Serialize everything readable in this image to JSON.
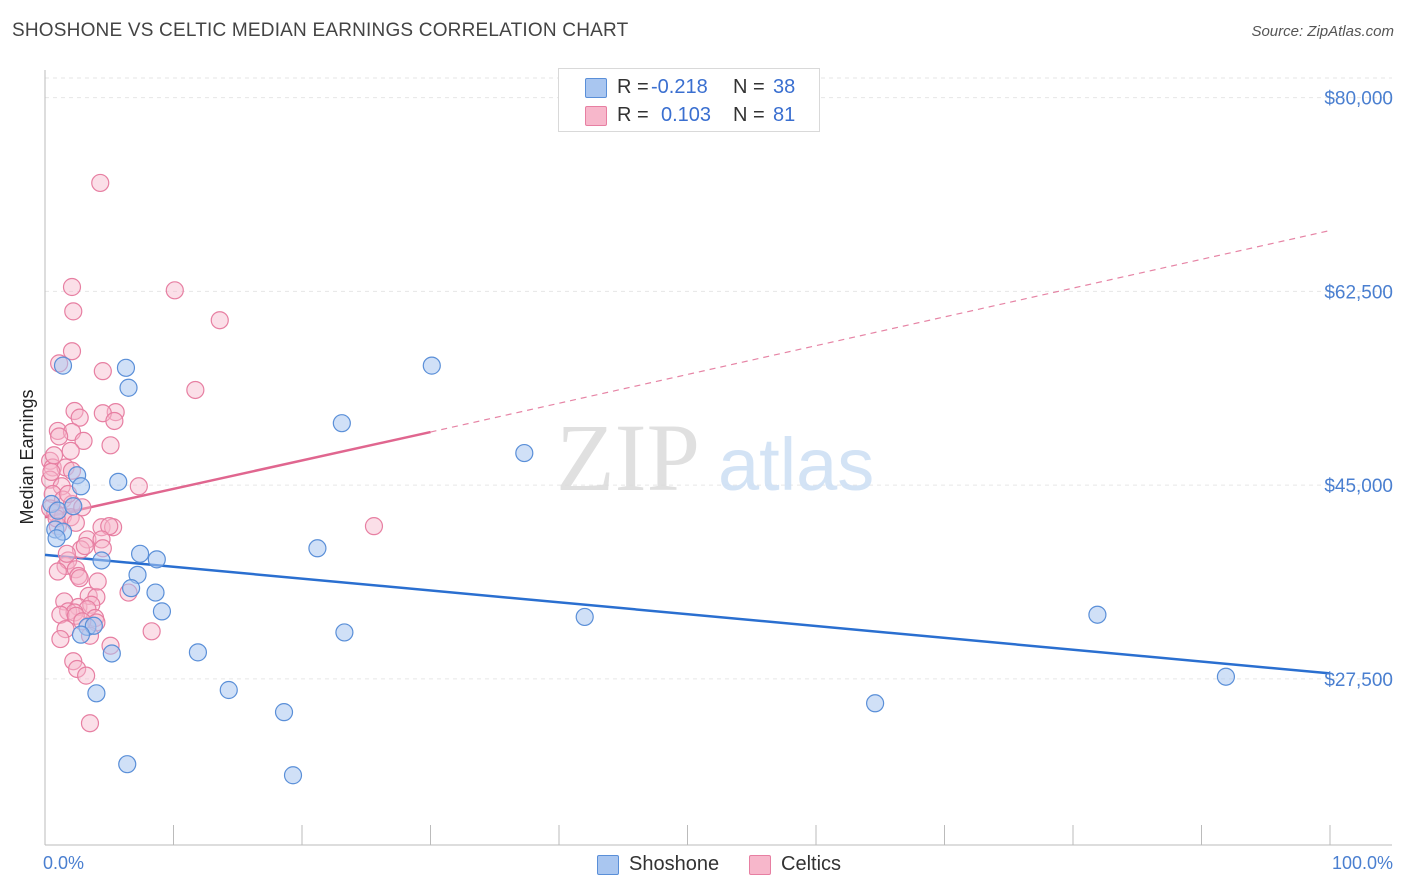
{
  "title": "SHOSHONE VS CELTIC MEDIAN EARNINGS CORRELATION CHART",
  "source": "Source: ZipAtlas.com",
  "watermark": {
    "zip": "ZIP",
    "atlas": "atlas"
  },
  "colors": {
    "shoshone_fill": "#a9c6f0",
    "shoshone_stroke": "#5a8fd8",
    "shoshone_line": "#2a6fd0",
    "celtics_fill": "#f7b7cb",
    "celtics_stroke": "#e77fa2",
    "celtics_line": "#e0668f",
    "axis_label": "#4a7fd0",
    "grid": "#e6e6e6"
  },
  "legend": {
    "rows": [
      {
        "series": "Shoshone",
        "r_label": "R =",
        "r_value": "-0.218",
        "n_label": "N =",
        "n_value": "38"
      },
      {
        "series": "Celtics",
        "r_label": "R =",
        "r_value": "0.103",
        "n_label": "N =",
        "n_value": "81"
      }
    ]
  },
  "bottom_legend": [
    "Shoshone",
    "Celtics"
  ],
  "chart_data": {
    "type": "scatter",
    "title": "SHOSHONE VS CELTIC MEDIAN EARNINGS CORRELATION CHART",
    "xlabel": "",
    "ylabel": "Median Earnings",
    "xlim": [
      0,
      100
    ],
    "ylim": [
      12500,
      82500
    ],
    "x_tick_labels": [
      "0.0%",
      "100.0%"
    ],
    "y_ticks": [
      27500,
      45000,
      62500,
      80000
    ],
    "y_tick_labels": [
      "$27,500",
      "$45,000",
      "$62,500",
      "$80,000"
    ],
    "grid": true,
    "series": [
      {
        "name": "Shoshone",
        "r": -0.218,
        "n": 38,
        "trend": {
          "x": [
            0,
            100
          ],
          "y": [
            38700,
            28000
          ],
          "style": "solid"
        },
        "points": [
          [
            1.4,
            55800
          ],
          [
            6.3,
            55600
          ],
          [
            30.1,
            55800
          ],
          [
            6.5,
            53800
          ],
          [
            23.1,
            50600
          ],
          [
            37.3,
            47900
          ],
          [
            2.5,
            45900
          ],
          [
            2.8,
            44900
          ],
          [
            5.7,
            45300
          ],
          [
            0.5,
            43300
          ],
          [
            0.8,
            41000
          ],
          [
            1.4,
            40800
          ],
          [
            0.9,
            40200
          ],
          [
            7.4,
            38800
          ],
          [
            8.7,
            38300
          ],
          [
            4.4,
            38200
          ],
          [
            21.2,
            39300
          ],
          [
            7.2,
            36900
          ],
          [
            6.7,
            35700
          ],
          [
            8.6,
            35300
          ],
          [
            9.1,
            33600
          ],
          [
            42.0,
            33100
          ],
          [
            81.9,
            33300
          ],
          [
            3.3,
            32200
          ],
          [
            3.8,
            32300
          ],
          [
            23.3,
            31700
          ],
          [
            5.2,
            29800
          ],
          [
            11.9,
            29900
          ],
          [
            91.9,
            27700
          ],
          [
            4.0,
            26200
          ],
          [
            14.3,
            26500
          ],
          [
            64.6,
            25300
          ],
          [
            18.6,
            24500
          ],
          [
            6.4,
            19800
          ],
          [
            19.3,
            18800
          ],
          [
            2.8,
            31500
          ],
          [
            1.0,
            42700
          ],
          [
            2.2,
            43100
          ]
        ]
      },
      {
        "name": "Celtics",
        "r": 0.103,
        "n": 81,
        "trend": {
          "x": [
            0,
            30,
            100
          ],
          "y": [
            42100,
            49800,
            68000
          ],
          "solid_until_x": 30
        },
        "points": [
          [
            4.3,
            72300
          ],
          [
            2.1,
            62900
          ],
          [
            10.1,
            62600
          ],
          [
            2.2,
            60700
          ],
          [
            13.6,
            59900
          ],
          [
            2.1,
            57100
          ],
          [
            1.1,
            56000
          ],
          [
            4.5,
            55300
          ],
          [
            11.7,
            53600
          ],
          [
            2.3,
            51700
          ],
          [
            5.5,
            51600
          ],
          [
            4.5,
            51500
          ],
          [
            2.7,
            51100
          ],
          [
            5.4,
            50800
          ],
          [
            1.0,
            49900
          ],
          [
            2.1,
            49800
          ],
          [
            1.1,
            49400
          ],
          [
            3.0,
            49000
          ],
          [
            5.1,
            48600
          ],
          [
            2.0,
            48100
          ],
          [
            0.4,
            47200
          ],
          [
            0.6,
            46600
          ],
          [
            1.6,
            46600
          ],
          [
            2.1,
            46300
          ],
          [
            0.4,
            45500
          ],
          [
            1.3,
            44900
          ],
          [
            7.3,
            44900
          ],
          [
            0.6,
            44200
          ],
          [
            1.4,
            43700
          ],
          [
            2.1,
            43300
          ],
          [
            0.4,
            42900
          ],
          [
            0.8,
            42500
          ],
          [
            1.4,
            42200
          ],
          [
            2.0,
            42100
          ],
          [
            2.4,
            41600
          ],
          [
            1.0,
            41300
          ],
          [
            4.4,
            41200
          ],
          [
            5.3,
            41200
          ],
          [
            5.0,
            41300
          ],
          [
            25.6,
            41300
          ],
          [
            3.3,
            40100
          ],
          [
            4.4,
            40100
          ],
          [
            4.5,
            39300
          ],
          [
            2.8,
            39200
          ],
          [
            3.1,
            39500
          ],
          [
            1.6,
            37700
          ],
          [
            1.8,
            38200
          ],
          [
            2.4,
            37400
          ],
          [
            1.0,
            37200
          ],
          [
            2.6,
            36800
          ],
          [
            2.7,
            36600
          ],
          [
            6.5,
            35300
          ],
          [
            3.4,
            35000
          ],
          [
            4.0,
            34900
          ],
          [
            1.5,
            34500
          ],
          [
            2.6,
            34000
          ],
          [
            3.6,
            34200
          ],
          [
            1.8,
            33600
          ],
          [
            3.3,
            33800
          ],
          [
            2.3,
            33500
          ],
          [
            1.2,
            33300
          ],
          [
            2.4,
            33200
          ],
          [
            3.9,
            33000
          ],
          [
            4.0,
            32600
          ],
          [
            2.9,
            32700
          ],
          [
            1.6,
            32000
          ],
          [
            8.3,
            31800
          ],
          [
            3.5,
            31400
          ],
          [
            1.2,
            31100
          ],
          [
            5.1,
            30500
          ],
          [
            2.2,
            29100
          ],
          [
            2.5,
            28400
          ],
          [
            3.2,
            27800
          ],
          [
            3.5,
            23500
          ],
          [
            0.5,
            46200
          ],
          [
            1.8,
            44200
          ],
          [
            0.9,
            42000
          ],
          [
            2.9,
            43000
          ],
          [
            1.7,
            38800
          ],
          [
            4.1,
            36300
          ],
          [
            0.7,
            47700
          ]
        ]
      }
    ]
  }
}
